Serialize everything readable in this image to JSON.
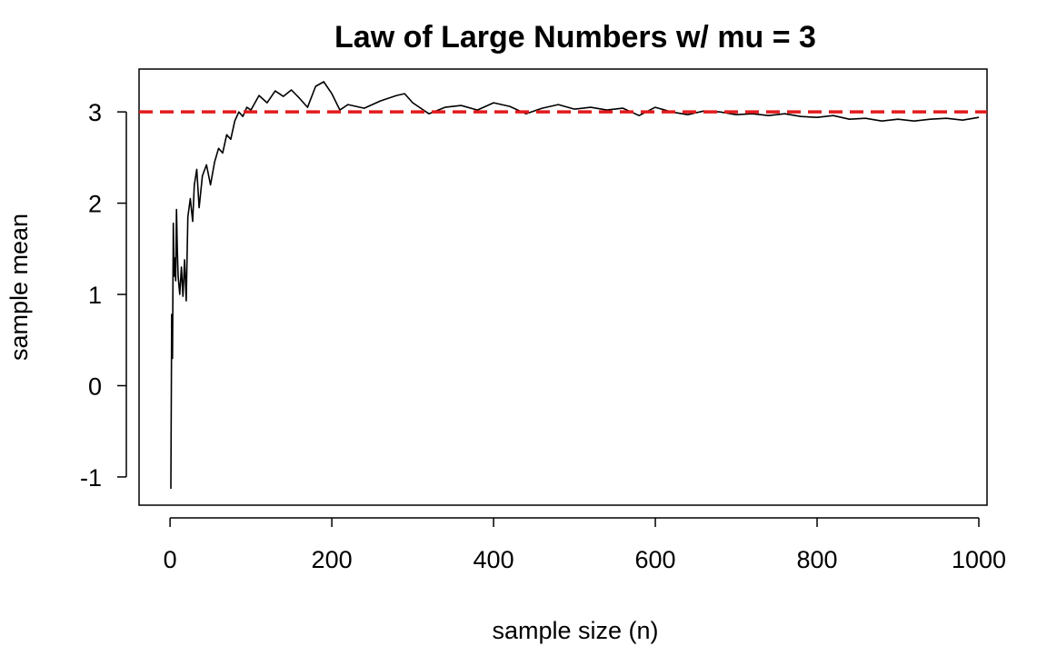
{
  "chart_data": {
    "type": "line",
    "title": "Law of Large Numbers w/ mu = 3",
    "xlabel": "sample size (n)",
    "ylabel": "sample mean",
    "xlim": [
      1,
      1000
    ],
    "ylim": [
      -1.15,
      3.35
    ],
    "x_ticks": [
      0,
      200,
      400,
      600,
      800,
      1000
    ],
    "x_tick_labels": [
      "0",
      "200",
      "400",
      "600",
      "800",
      "1000"
    ],
    "y_ticks": [
      -1,
      0,
      1,
      2,
      3
    ],
    "y_tick_labels": [
      "-1",
      "0",
      "1",
      "2",
      "3"
    ],
    "grid": false,
    "reference_line": {
      "y": 3,
      "color": "#e31a1c",
      "style": "dashed"
    },
    "series": [
      {
        "color": "#000000",
        "x": [
          1,
          2,
          3,
          4,
          5,
          6,
          7,
          8,
          9,
          10,
          12,
          14,
          16,
          18,
          20,
          22,
          25,
          28,
          30,
          33,
          36,
          40,
          45,
          50,
          55,
          60,
          65,
          70,
          75,
          80,
          85,
          90,
          95,
          100,
          110,
          120,
          130,
          140,
          150,
          160,
          170,
          180,
          190,
          200,
          210,
          220,
          240,
          260,
          280,
          290,
          300,
          320,
          340,
          360,
          380,
          400,
          420,
          440,
          460,
          480,
          500,
          520,
          540,
          560,
          580,
          600,
          620,
          640,
          660,
          680,
          700,
          720,
          740,
          760,
          780,
          800,
          820,
          840,
          860,
          880,
          900,
          920,
          940,
          960,
          980,
          1000
        ],
        "y": [
          -1.13,
          0.78,
          0.3,
          1.78,
          1.2,
          1.4,
          1.15,
          1.93,
          1.5,
          1.2,
          1.0,
          1.3,
          0.98,
          1.38,
          0.93,
          1.85,
          2.05,
          1.8,
          2.2,
          2.37,
          1.95,
          2.3,
          2.42,
          2.2,
          2.45,
          2.6,
          2.55,
          2.75,
          2.7,
          2.9,
          3.0,
          2.95,
          3.05,
          3.02,
          3.18,
          3.1,
          3.23,
          3.17,
          3.24,
          3.15,
          3.05,
          3.28,
          3.33,
          3.2,
          3.02,
          3.08,
          3.04,
          3.12,
          3.18,
          3.2,
          3.1,
          2.98,
          3.05,
          3.07,
          3.02,
          3.1,
          3.06,
          2.98,
          3.04,
          3.08,
          3.03,
          3.05,
          3.02,
          3.04,
          2.96,
          3.05,
          3.0,
          2.97,
          3.01,
          3.0,
          2.97,
          2.98,
          2.96,
          2.98,
          2.95,
          2.94,
          2.96,
          2.92,
          2.93,
          2.9,
          2.92,
          2.9,
          2.92,
          2.93,
          2.91,
          2.94
        ]
      }
    ]
  }
}
